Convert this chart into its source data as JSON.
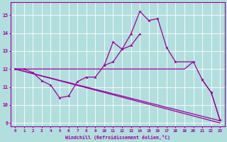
{
  "xlabel": "Windchill (Refroidissement éolien,°C)",
  "bg_color": "#b2dede",
  "grid_color": "#ffffff",
  "line_color": "#990099",
  "ylim": [
    8.8,
    15.7
  ],
  "xlim": [
    -0.5,
    23.5
  ],
  "yticks": [
    9,
    10,
    11,
    12,
    13,
    14,
    15
  ],
  "xticks": [
    0,
    1,
    2,
    3,
    4,
    5,
    6,
    7,
    8,
    9,
    10,
    11,
    12,
    13,
    14,
    15,
    16,
    17,
    18,
    19,
    20,
    21,
    22,
    23
  ],
  "line_flat": {
    "x": [
      0,
      1,
      2,
      3,
      4,
      5,
      6,
      7,
      8,
      9,
      10,
      11,
      12,
      13,
      14,
      15,
      16,
      17,
      18,
      19,
      20
    ],
    "y": [
      12.0,
      12.0,
      12.0,
      12.0,
      12.0,
      12.0,
      12.0,
      12.0,
      12.0,
      12.0,
      12.0,
      12.0,
      12.0,
      12.0,
      12.0,
      12.0,
      12.0,
      12.0,
      12.0,
      12.0,
      12.4
    ],
    "marker": false
  },
  "line_jagged": {
    "x": [
      10,
      11,
      12,
      13,
      14,
      15,
      16,
      17,
      18,
      20,
      21,
      22,
      23
    ],
    "y": [
      12.2,
      13.5,
      13.1,
      13.95,
      15.2,
      14.7,
      14.8,
      13.2,
      12.4,
      12.4,
      11.4,
      10.7,
      9.15
    ],
    "marker": true
  },
  "line_wiggly": {
    "x": [
      0,
      1,
      2,
      3,
      4,
      5,
      6,
      7,
      8,
      9,
      10,
      11,
      12,
      13,
      14,
      21,
      22,
      23
    ],
    "y": [
      12.0,
      12.0,
      11.8,
      11.35,
      11.1,
      10.4,
      10.5,
      11.3,
      11.55,
      11.55,
      12.2,
      12.4,
      13.1,
      13.3,
      13.95,
      11.4,
      10.7,
      9.15
    ],
    "marker": true
  },
  "line_diag": {
    "x": [
      0,
      23
    ],
    "y": [
      12.0,
      9.0
    ],
    "marker": false
  },
  "line_smooth": {
    "x": [
      0,
      1,
      2,
      3,
      4,
      5,
      6,
      7,
      8,
      9,
      10,
      11,
      12,
      13,
      14,
      15,
      16,
      17,
      18,
      19,
      20,
      21,
      22,
      23
    ],
    "y": [
      12.0,
      11.88,
      11.75,
      11.62,
      11.5,
      11.37,
      11.25,
      11.12,
      11.0,
      10.87,
      10.75,
      10.62,
      10.5,
      10.37,
      10.25,
      10.12,
      10.0,
      9.87,
      9.75,
      9.62,
      9.5,
      9.37,
      9.25,
      9.12
    ],
    "marker": false
  }
}
